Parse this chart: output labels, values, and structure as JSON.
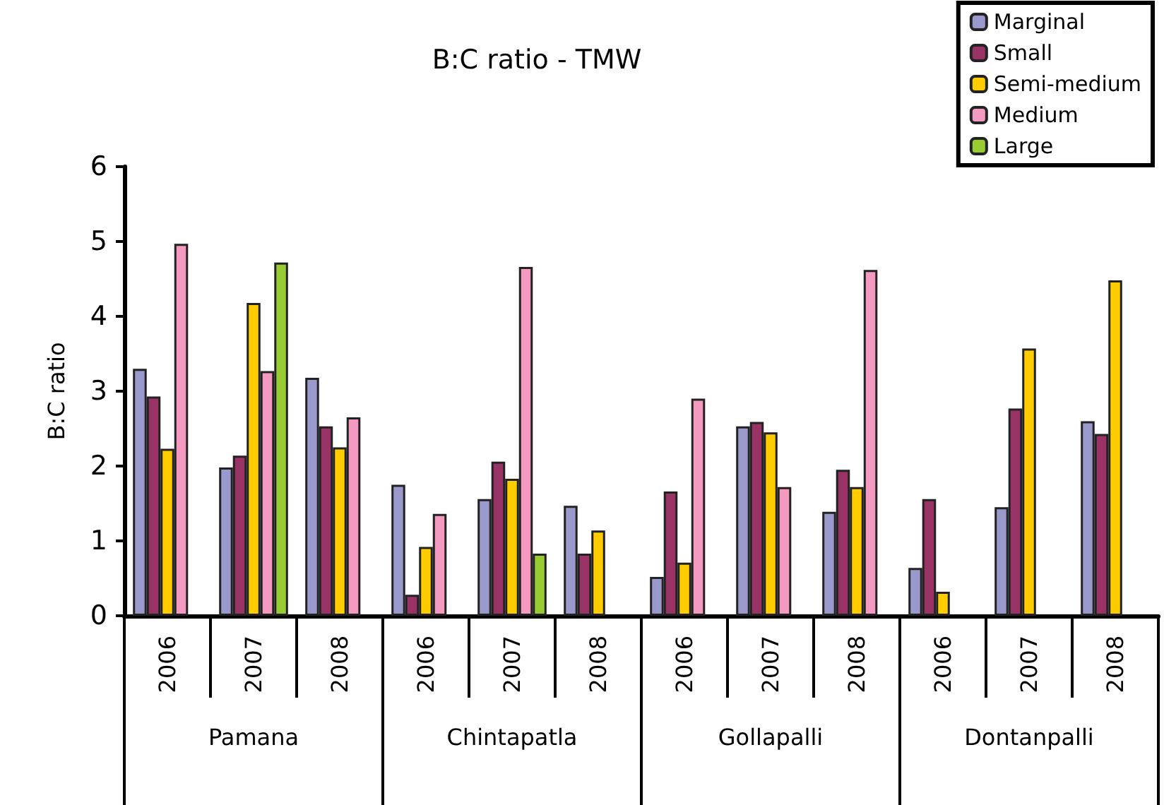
{
  "chart_data": {
    "type": "bar",
    "title": "B:C ratio - TMW",
    "ylabel": "B:C ratio",
    "categories": [
      "2006",
      "2007",
      "2008",
      "2006",
      "2007",
      "2008",
      "2006",
      "2007",
      "2008",
      "2006",
      "2007",
      "2008"
    ],
    "annotations": [
      "Pamana",
      "Chintapatla",
      "Gollapalli",
      "Dontanpalli"
    ],
    "series": [
      {
        "name": "Marginal",
        "color": "#9999cc",
        "values": [
          3.3,
          1.98,
          3.18,
          1.75,
          1.56,
          1.47,
          0.52,
          2.53,
          1.39,
          0.64,
          1.45,
          2.6
        ]
      },
      {
        "name": "Small",
        "color": "#993366",
        "values": [
          2.93,
          2.14,
          2.53,
          0.28,
          2.06,
          0.83,
          1.66,
          2.59,
          1.95,
          1.56,
          2.77,
          2.43
        ]
      },
      {
        "name": "Semi-medium",
        "color": "#ffcc00",
        "values": [
          2.23,
          4.18,
          2.25,
          0.92,
          1.83,
          1.14,
          0.71,
          2.45,
          1.72,
          0.32,
          3.57,
          4.48
        ]
      },
      {
        "name": "Medium",
        "color": "#f49ac1",
        "values": [
          4.97,
          3.27,
          2.65,
          1.36,
          4.66,
          null,
          2.9,
          1.72,
          4.62,
          null,
          null,
          null
        ]
      },
      {
        "name": "Large",
        "color": "#99cc33",
        "values": [
          null,
          4.72,
          null,
          null,
          0.83,
          null,
          null,
          null,
          null,
          null,
          null,
          null
        ]
      }
    ],
    "ylim": [
      0,
      6
    ],
    "yticks": [
      0,
      1,
      2,
      3,
      4,
      5,
      6
    ],
    "grid": false,
    "legend": "top right"
  }
}
